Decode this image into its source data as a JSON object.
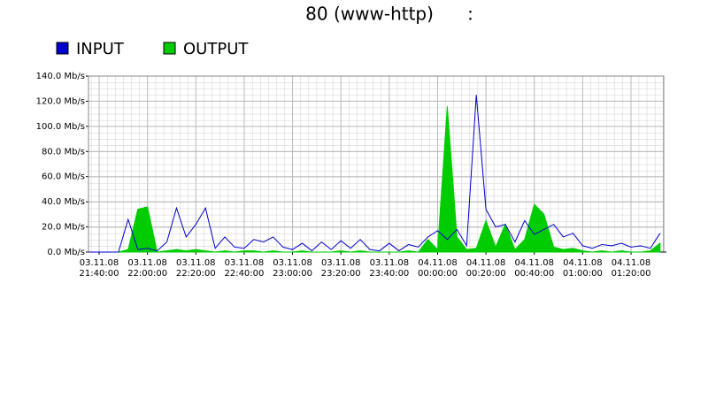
{
  "chart_data": {
    "type": "traffic",
    "title": "80 (www-http)      :",
    "x": [
      "03.11.08 21:36:00",
      "03.11.08 21:40:00",
      "03.11.08 21:44:00",
      "03.11.08 21:48:00",
      "03.11.08 21:52:00",
      "03.11.08 21:56:00",
      "03.11.08 22:00:00",
      "03.11.08 22:04:00",
      "03.11.08 22:08:00",
      "03.11.08 22:12:00",
      "03.11.08 22:16:00",
      "03.11.08 22:20:00",
      "03.11.08 22:24:00",
      "03.11.08 22:28:00",
      "03.11.08 22:32:00",
      "03.11.08 22:36:00",
      "03.11.08 22:40:00",
      "03.11.08 22:44:00",
      "03.11.08 22:48:00",
      "03.11.08 22:52:00",
      "03.11.08 22:56:00",
      "03.11.08 23:00:00",
      "03.11.08 23:04:00",
      "03.11.08 23:08:00",
      "03.11.08 23:12:00",
      "03.11.08 23:16:00",
      "03.11.08 23:20:00",
      "03.11.08 23:24:00",
      "03.11.08 23:28:00",
      "03.11.08 23:32:00",
      "03.11.08 23:36:00",
      "03.11.08 23:40:00",
      "03.11.08 23:44:00",
      "03.11.08 23:48:00",
      "03.11.08 23:52:00",
      "03.11.08 23:56:00",
      "04.11.08 00:00:00",
      "04.11.08 00:04:00",
      "04.11.08 00:08:00",
      "04.11.08 00:12:00",
      "04.11.08 00:16:00",
      "04.11.08 00:20:00",
      "04.11.08 00:24:00",
      "04.11.08 00:28:00",
      "04.11.08 00:32:00",
      "04.11.08 00:36:00",
      "04.11.08 00:40:00",
      "04.11.08 00:44:00",
      "04.11.08 00:48:00",
      "04.11.08 00:52:00",
      "04.11.08 00:56:00",
      "04.11.08 01:00:00",
      "04.11.08 01:04:00",
      "04.11.08 01:08:00",
      "04.11.08 01:12:00",
      "04.11.08 01:16:00",
      "04.11.08 01:20:00",
      "04.11.08 01:24:00",
      "04.11.08 01:28:00",
      "04.11.08 01:32:00"
    ],
    "series": [
      {
        "name": "INPUT",
        "color": "#0000cc",
        "values": [
          0,
          0,
          0,
          0,
          26,
          2,
          3,
          1,
          8,
          35,
          12,
          22,
          35,
          3,
          12,
          4,
          3,
          10,
          8,
          12,
          4,
          2,
          7,
          1,
          8,
          2,
          9,
          3,
          10,
          2,
          1,
          7,
          1,
          6,
          4,
          12,
          17,
          10,
          18,
          5,
          125,
          34,
          20,
          22,
          8,
          25,
          14,
          18,
          22,
          12,
          15,
          5,
          3,
          6,
          5,
          7,
          4,
          5,
          3,
          15
        ]
      },
      {
        "name": "OUTPUT",
        "color": "#00cc00",
        "values": [
          0,
          0,
          0,
          0,
          2,
          34,
          36,
          0,
          1,
          2,
          1,
          2,
          1,
          0,
          1,
          0,
          1,
          1,
          0,
          1,
          0,
          0,
          1,
          0,
          0,
          0,
          1,
          0,
          1,
          0,
          0,
          0,
          0,
          1,
          0,
          10,
          2,
          116,
          12,
          2,
          3,
          25,
          4,
          22,
          2,
          10,
          38,
          30,
          4,
          2,
          3,
          1,
          0,
          1,
          0,
          1,
          0,
          0,
          1,
          7
        ]
      }
    ],
    "xlim": [
      "03.11.08 21:35:36",
      "04.11.08 01:33:32"
    ],
    "xticks": [
      "03.11.08 21:40:00",
      "03.11.08 22:00:00",
      "03.11.08 22:20:00",
      "03.11.08 22:40:00",
      "03.11.08 23:00:00",
      "03.11.08 23:20:00",
      "03.11.08 23:40:00",
      "04.11.08 00:00:00",
      "04.11.08 00:20:00",
      "04.11.08 00:40:00",
      "04.11.08 01:00:00",
      "04.11.08 01:20:00"
    ],
    "ylim": [
      0,
      140
    ],
    "yticks": [
      {
        "value": 0,
        "label": "0.0 Mb/s"
      },
      {
        "value": 20,
        "label": "20.0 Mb/s"
      },
      {
        "value": 40,
        "label": "40.0 Mb/s"
      },
      {
        "value": 60,
        "label": "60.0 Mb/s"
      },
      {
        "value": 80,
        "label": "80.0 Mb/s"
      },
      {
        "value": 100,
        "label": "100.0 Mb/s"
      },
      {
        "value": 120,
        "label": "120.0 Mb/s"
      },
      {
        "value": 140,
        "label": "140.0 Mb/s"
      }
    ],
    "grid": true
  }
}
